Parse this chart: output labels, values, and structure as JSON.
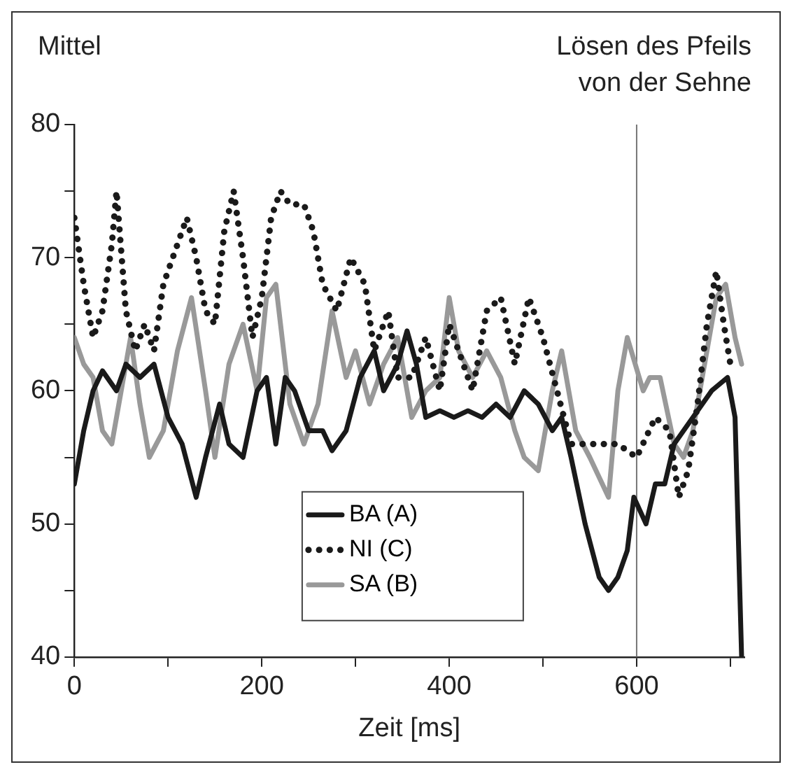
{
  "chart_data": {
    "type": "line",
    "ylabel": "Mittel",
    "xlabel": "Zeit [ms]",
    "xlim": [
      0,
      715
    ],
    "ylim": [
      40,
      80
    ],
    "xticks": [
      0,
      {
        "value": 100,
        "label": null
      },
      200,
      {
        "value": 300,
        "label": null
      },
      400,
      {
        "value": 500,
        "label": null
      },
      600,
      {
        "value": 700,
        "label": null
      }
    ],
    "yticks": [
      40,
      {
        "value": 45,
        "label": null
      },
      50,
      {
        "value": 55,
        "label": null
      },
      60,
      {
        "value": 65,
        "label": null
      },
      70,
      {
        "value": 75,
        "label": null
      },
      80
    ],
    "grid": false,
    "legend": "bottom",
    "marker": "none",
    "ref_lines": [
      {
        "axis": "x",
        "value": 600,
        "label": "Lösen des Pfeils von der Sehne",
        "color": "#777777"
      }
    ],
    "series": [
      {
        "name": "BA (A)",
        "color": "#1a1a1a",
        "line_style": "solid",
        "x": [
          0,
          10,
          20,
          30,
          45,
          55,
          70,
          85,
          100,
          115,
          130,
          140,
          155,
          165,
          180,
          195,
          205,
          215,
          225,
          235,
          250,
          265,
          275,
          290,
          305,
          320,
          330,
          345,
          355,
          365,
          375,
          390,
          405,
          420,
          435,
          450,
          465,
          480,
          495,
          510,
          520,
          530,
          545,
          560,
          570,
          580,
          590,
          597,
          610,
          620,
          630,
          640,
          660,
          680,
          697,
          705,
          712
        ],
        "values": [
          53,
          57,
          60,
          61.5,
          60,
          62,
          61,
          62,
          58,
          56,
          52,
          55,
          59,
          56,
          55,
          60,
          61,
          56,
          61,
          60,
          57,
          57,
          55.5,
          57,
          61,
          63,
          60,
          62,
          64.5,
          62,
          58,
          58.5,
          58,
          58.5,
          58,
          59,
          58,
          60,
          59,
          57,
          58,
          55,
          50,
          46,
          45,
          46,
          48,
          52,
          50,
          53,
          53,
          56,
          58,
          60,
          61,
          58,
          40
        ]
      },
      {
        "name": "NI (C)",
        "color": "#1a1a1a",
        "line_style": "dotted",
        "x": [
          0,
          10,
          20,
          30,
          40,
          45,
          55,
          65,
          75,
          85,
          95,
          110,
          120,
          130,
          140,
          150,
          160,
          170,
          180,
          190,
          200,
          210,
          220,
          230,
          245,
          255,
          265,
          280,
          295,
          310,
          320,
          335,
          345,
          360,
          375,
          390,
          400,
          415,
          425,
          440,
          455,
          470,
          485,
          500,
          515,
          530,
          545,
          560,
          580,
          600,
          620,
          635,
          645,
          655,
          665,
          675,
          685,
          693,
          700
        ],
        "values": [
          73,
          68,
          64,
          66,
          71,
          75,
          66,
          63,
          65,
          63,
          68,
          71,
          73,
          70,
          66,
          65,
          72,
          75,
          70,
          64,
          67,
          73,
          75,
          74,
          74,
          72,
          68,
          66,
          70,
          68,
          63,
          66,
          61,
          61,
          64,
          60,
          65,
          62,
          60,
          66,
          67,
          62,
          67,
          64,
          60,
          56,
          56,
          56,
          56,
          55,
          58,
          57,
          52,
          54,
          59,
          65,
          69,
          65,
          62
        ]
      },
      {
        "name": "SA (B)",
        "color": "#999999",
        "line_style": "solid",
        "x": [
          0,
          10,
          20,
          30,
          40,
          50,
          60,
          70,
          80,
          95,
          110,
          125,
          140,
          150,
          165,
          180,
          195,
          205,
          215,
          230,
          245,
          260,
          275,
          290,
          300,
          315,
          330,
          345,
          360,
          375,
          390,
          400,
          410,
          425,
          440,
          455,
          470,
          480,
          495,
          510,
          520,
          535,
          550,
          570,
          580,
          590,
          607,
          614,
          625,
          640,
          650,
          660,
          675,
          685,
          695,
          705,
          712
        ],
        "values": [
          64,
          62,
          61,
          57,
          56,
          60,
          64,
          59,
          55,
          57,
          63,
          67,
          60,
          55,
          62,
          65,
          60,
          67,
          68,
          59,
          56,
          59,
          66,
          61,
          63,
          59,
          62,
          64,
          58,
          60,
          61,
          67,
          63,
          61,
          63,
          61,
          57,
          55,
          54,
          60,
          63,
          57,
          55,
          52,
          60,
          64,
          60,
          61,
          61,
          56,
          55,
          57,
          63,
          67,
          68,
          64,
          62
        ]
      }
    ]
  }
}
